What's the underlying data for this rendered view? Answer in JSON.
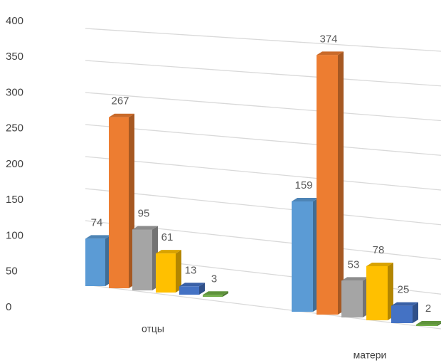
{
  "chart_data": {
    "type": "bar3d",
    "categories": [
      "отцы",
      "матери"
    ],
    "series": [
      {
        "color": "#5b9bd5",
        "values": [
          74,
          159
        ]
      },
      {
        "color": "#ed7d31",
        "values": [
          267,
          374
        ]
      },
      {
        "color": "#a5a5a5",
        "values": [
          95,
          53
        ]
      },
      {
        "color": "#ffc000",
        "values": [
          61,
          78
        ]
      },
      {
        "color": "#4472c4",
        "values": [
          13,
          25
        ]
      },
      {
        "color": "#70ad47",
        "values": [
          3,
          2
        ]
      }
    ],
    "ylim": [
      0,
      400
    ],
    "yticks": [
      0,
      50,
      100,
      150,
      200,
      250,
      300,
      350,
      400
    ],
    "grid": true
  }
}
